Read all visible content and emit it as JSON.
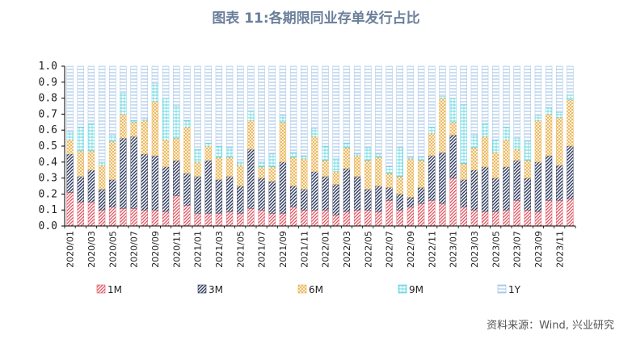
{
  "title": "图表 11:各期限同业存单发行占比",
  "source": "资料来源：Wind, 兴业研究",
  "colors": {
    "1M": "#e0505c",
    "3M": "#2e3a5c",
    "6M": "#e9b04a",
    "9M": "#4fd0de",
    "1Y": "#8fb6e0"
  },
  "chart_data": {
    "type": "bar",
    "stacked": true,
    "title": "图表 11:各期限同业存单发行占比",
    "ylim": [
      0,
      1.0
    ],
    "yticks": [
      "0.0",
      "0.1",
      "0.2",
      "0.3",
      "0.4",
      "0.5",
      "0.6",
      "0.7",
      "0.8",
      "0.9",
      "1.0"
    ],
    "grid": false,
    "legend": "bottom",
    "x": [
      "2020/01",
      "2020/02",
      "2020/03",
      "2020/04",
      "2020/05",
      "2020/06",
      "2020/07",
      "2020/08",
      "2020/09",
      "2020/10",
      "2020/11",
      "2020/12",
      "2021/01",
      "2021/02",
      "2021/03",
      "2021/04",
      "2021/05",
      "2021/06",
      "2021/07",
      "2021/08",
      "2021/09",
      "2021/10",
      "2021/11",
      "2021/12",
      "2022/01",
      "2022/02",
      "2022/03",
      "2022/04",
      "2022/05",
      "2022/06",
      "2022/07",
      "2022/08",
      "2022/09",
      "2022/10",
      "2022/11",
      "2022/12",
      "2023/01",
      "2023/02",
      "2023/03",
      "2023/04",
      "2023/05",
      "2023/06",
      "2023/07",
      "2023/08",
      "2023/09",
      "2023/10",
      "2023/11",
      "2023/12"
    ],
    "xtick_labels": [
      "2020/01",
      "2020/03",
      "2020/05",
      "2020/07",
      "2020/09",
      "2020/11",
      "2021/01",
      "2021/03",
      "2021/05",
      "2021/07",
      "2021/09",
      "2021/11",
      "2022/01",
      "2022/03",
      "2022/05",
      "2022/07",
      "2022/09",
      "2022/11",
      "2023/01",
      "2023/03",
      "2023/05",
      "2023/07",
      "2023/09",
      "2023/11"
    ],
    "series": [
      {
        "name": "1M",
        "values": [
          0.21,
          0.15,
          0.15,
          0.1,
          0.12,
          0.11,
          0.11,
          0.1,
          0.1,
          0.09,
          0.19,
          0.13,
          0.08,
          0.08,
          0.08,
          0.09,
          0.08,
          0.11,
          0.1,
          0.08,
          0.08,
          0.12,
          0.1,
          0.1,
          0.1,
          0.07,
          0.09,
          0.1,
          0.1,
          0.09,
          0.16,
          0.1,
          0.12,
          0.14,
          0.16,
          0.14,
          0.3,
          0.12,
          0.1,
          0.09,
          0.09,
          0.1,
          0.16,
          0.1,
          0.09,
          0.16,
          0.16,
          0.17
        ]
      },
      {
        "name": "3M",
        "values": [
          0.24,
          0.16,
          0.2,
          0.13,
          0.17,
          0.44,
          0.45,
          0.35,
          0.34,
          0.28,
          0.22,
          0.2,
          0.23,
          0.33,
          0.21,
          0.22,
          0.17,
          0.37,
          0.2,
          0.2,
          0.32,
          0.13,
          0.13,
          0.24,
          0.21,
          0.19,
          0.27,
          0.21,
          0.13,
          0.16,
          0.08,
          0.1,
          0.06,
          0.1,
          0.28,
          0.32,
          0.27,
          0.17,
          0.25,
          0.28,
          0.21,
          0.27,
          0.25,
          0.2,
          0.31,
          0.28,
          0.22,
          0.33
        ]
      },
      {
        "name": "6M",
        "values": [
          0.09,
          0.16,
          0.12,
          0.15,
          0.24,
          0.15,
          0.09,
          0.21,
          0.34,
          0.17,
          0.14,
          0.29,
          0.09,
          0.09,
          0.14,
          0.12,
          0.13,
          0.18,
          0.07,
          0.09,
          0.25,
          0.18,
          0.19,
          0.22,
          0.1,
          0.08,
          0.13,
          0.13,
          0.18,
          0.18,
          0.09,
          0.11,
          0.24,
          0.17,
          0.14,
          0.34,
          0.08,
          0.1,
          0.14,
          0.19,
          0.16,
          0.17,
          0.07,
          0.11,
          0.26,
          0.26,
          0.3,
          0.29
        ]
      },
      {
        "name": "9M",
        "values": [
          0.05,
          0.15,
          0.17,
          0.02,
          0.04,
          0.13,
          0.01,
          0.01,
          0.11,
          0.26,
          0.2,
          0.04,
          0.08,
          0.02,
          0.07,
          0.06,
          0.02,
          0.06,
          0.03,
          0.08,
          0.04,
          0.03,
          0.02,
          0.05,
          0.09,
          0.08,
          0.03,
          0.01,
          0.08,
          0.02,
          0.04,
          0.18,
          0.01,
          0.02,
          0.04,
          0.01,
          0.15,
          0.37,
          0.08,
          0.08,
          0.08,
          0.08,
          0.07,
          0.12,
          0.03,
          0.04,
          0.03,
          0.03
        ]
      },
      {
        "name": "1Y",
        "values": [
          0.41,
          0.38,
          0.36,
          0.6,
          0.43,
          0.17,
          0.34,
          0.33,
          0.11,
          0.2,
          0.25,
          0.34,
          0.52,
          0.48,
          0.5,
          0.51,
          0.6,
          0.28,
          0.6,
          0.55,
          0.31,
          0.54,
          0.56,
          0.39,
          0.5,
          0.58,
          0.48,
          0.55,
          0.51,
          0.55,
          0.63,
          0.51,
          0.57,
          0.57,
          0.38,
          0.19,
          0.2,
          0.24,
          0.43,
          0.36,
          0.46,
          0.38,
          0.45,
          0.47,
          0.31,
          0.26,
          0.29,
          0.18
        ]
      }
    ]
  }
}
